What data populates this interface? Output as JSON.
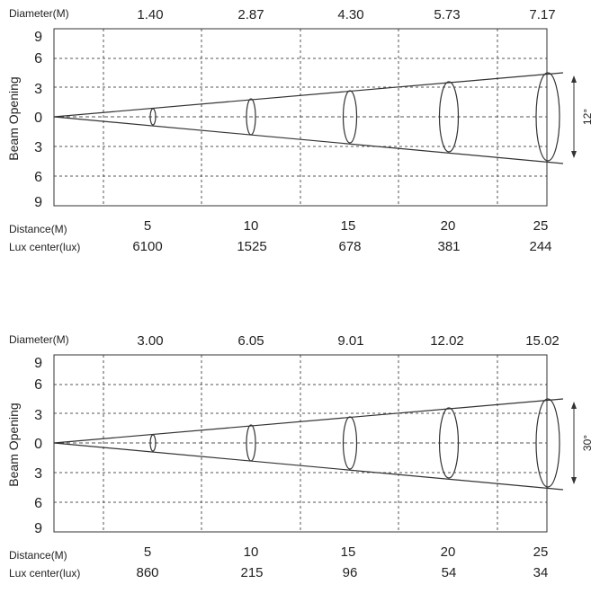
{
  "labels": {
    "diameter": "Diameter(M)",
    "distance": "Distance(M)",
    "lux": "Lux center(lux)",
    "y_title": "Beam Opening"
  },
  "y_ticks": [
    "9",
    "6",
    "3",
    "0",
    "3",
    "6",
    "9"
  ],
  "panels": [
    {
      "angle_label": "12°",
      "distances": [
        "5",
        "10",
        "15",
        "20",
        "25"
      ],
      "diameters": [
        "1.40",
        "2.87",
        "4.30",
        "5.73",
        "7.17"
      ],
      "lux": [
        "6100",
        "1525",
        "678",
        "381",
        "244"
      ]
    },
    {
      "angle_label": "30°",
      "distances": [
        "5",
        "10",
        "15",
        "20",
        "25"
      ],
      "diameters": [
        "3.00",
        "6.05",
        "9.01",
        "12.02",
        "15.02"
      ],
      "lux": [
        "860",
        "215",
        "96",
        "54",
        "34"
      ]
    }
  ]
}
